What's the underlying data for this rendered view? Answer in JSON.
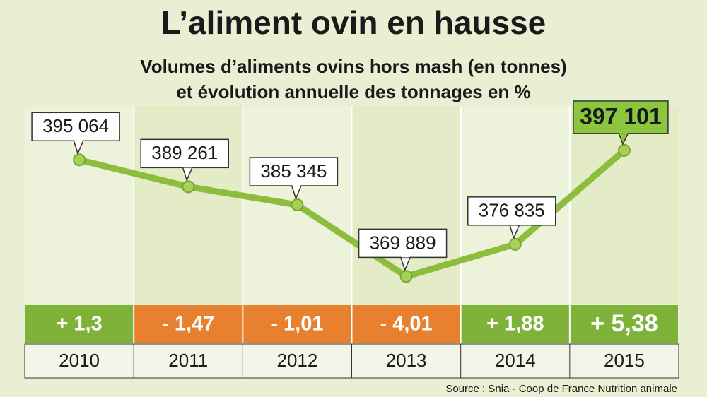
{
  "chart_data": {
    "type": "line",
    "title": "L’aliment ovin en hausse",
    "subtitle": [
      "Volumes d’aliments ovins hors mash (en tonnes)",
      "et évolution annuelle des tonnages en %"
    ],
    "categories": [
      "2010",
      "2011",
      "2012",
      "2013",
      "2014",
      "2015"
    ],
    "values": [
      395064,
      389261,
      385345,
      369889,
      376835,
      397101
    ],
    "value_labels": [
      "395 064",
      "389 261",
      "385 345",
      "369 889",
      "376 835",
      "397 101"
    ],
    "color": "#8cbd3c",
    "ylim": [
      364000,
      407000
    ],
    "changes": {
      "values": [
        1.3,
        -1.47,
        -1.01,
        -4.01,
        1.88,
        5.38
      ],
      "value_labels": [
        "+ 1,3",
        "- 1,47",
        "- 1,01",
        "- 4,01",
        "+ 1,88",
        "+ 5,38"
      ],
      "positive_color": "#7fb239",
      "negative_color": "#e8812f"
    },
    "source": "Source : Snia - Coop de France Nutrition animale"
  }
}
